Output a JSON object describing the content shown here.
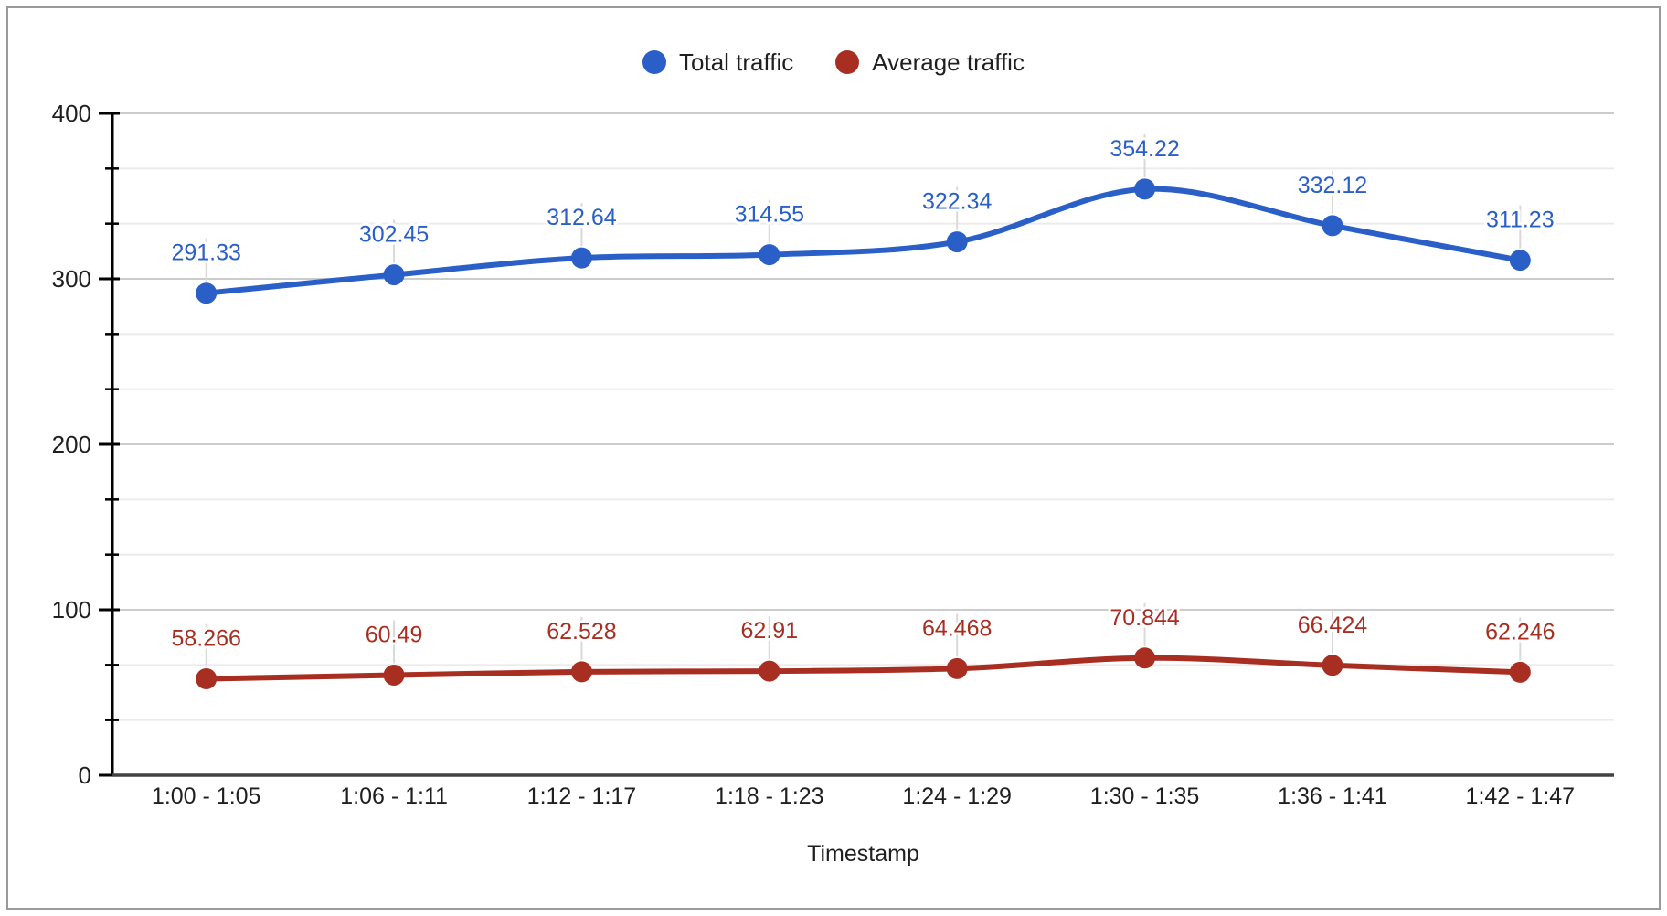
{
  "chart_data": {
    "type": "line",
    "title": "",
    "xlabel": "Timestamp",
    "ylabel": "",
    "ylim": [
      0,
      400
    ],
    "yticks": [
      0,
      100,
      200,
      300,
      400
    ],
    "minor_gridline_divisions": 3,
    "grid": true,
    "legend_position": "top",
    "curve_type": "smooth",
    "point_labels_visible": true,
    "categories": [
      "1:00 - 1:05",
      "1:06 - 1:11",
      "1:12 - 1:17",
      "1:18 - 1:23",
      "1:24 - 1:29",
      "1:30 - 1:35",
      "1:36 - 1:41",
      "1:42 - 1:47"
    ],
    "series": [
      {
        "name": "Total traffic",
        "color": "#2a5fc7",
        "values": [
          291.33,
          302.45,
          312.64,
          314.55,
          322.34,
          354.22,
          332.12,
          311.23
        ]
      },
      {
        "name": "Average traffic",
        "color": "#a92e22",
        "values": [
          58.266,
          60.49,
          62.528,
          62.91,
          64.468,
          70.844,
          66.424,
          62.246
        ]
      }
    ],
    "style": {
      "major_gridline_color": "#cccccc",
      "minor_gridline_color": "#ebebeb",
      "baseline_color": "#424242",
      "axis_line_color": "#000000",
      "tick_color": "#000000",
      "axis_text_color": "#1f1f1f",
      "annotation_stem_color": "#d9d9d9",
      "frame_border_color": "#9a9a9a",
      "background_color": "#ffffff"
    }
  }
}
